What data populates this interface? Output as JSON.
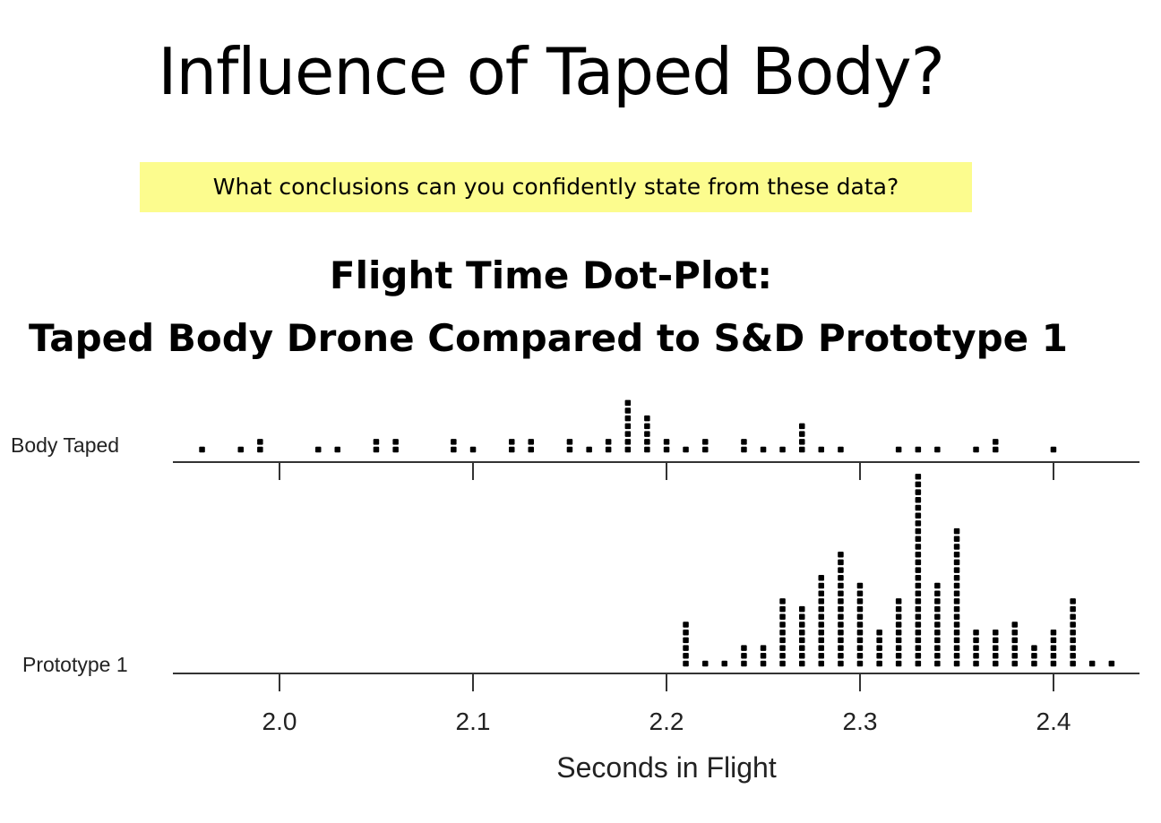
{
  "slide": {
    "title": "Influence of Taped Body?",
    "question": "What conclusions can you confidently state from these data?"
  },
  "chart_data": {
    "type": "dotplot",
    "title_line1": "Flight Time Dot-Plot:",
    "title_line2": "Taped Body Drone Compared to S&D Prototype 1",
    "xlabel": "Seconds in Flight",
    "xlim": [
      1.945,
      2.445
    ],
    "xticks": [
      2.0,
      2.1,
      2.2,
      2.3,
      2.4
    ],
    "xtick_labels": [
      "2.0",
      "2.1",
      "2.2",
      "2.3",
      "2.4"
    ],
    "series": [
      {
        "name": "Body Taped",
        "counts": [
          [
            1.96,
            1
          ],
          [
            1.98,
            1
          ],
          [
            1.99,
            2
          ],
          [
            2.02,
            1
          ],
          [
            2.03,
            1
          ],
          [
            2.05,
            2
          ],
          [
            2.06,
            2
          ],
          [
            2.09,
            2
          ],
          [
            2.1,
            1
          ],
          [
            2.12,
            2
          ],
          [
            2.13,
            2
          ],
          [
            2.15,
            2
          ],
          [
            2.16,
            1
          ],
          [
            2.17,
            2
          ],
          [
            2.18,
            7
          ],
          [
            2.19,
            5
          ],
          [
            2.2,
            2
          ],
          [
            2.21,
            1
          ],
          [
            2.22,
            2
          ],
          [
            2.24,
            2
          ],
          [
            2.25,
            1
          ],
          [
            2.26,
            1
          ],
          [
            2.27,
            4
          ],
          [
            2.28,
            1
          ],
          [
            2.29,
            1
          ],
          [
            2.32,
            1
          ],
          [
            2.33,
            1
          ],
          [
            2.34,
            1
          ],
          [
            2.36,
            1
          ],
          [
            2.37,
            2
          ],
          [
            2.4,
            1
          ]
        ]
      },
      {
        "name": "Prototype 1",
        "counts": [
          [
            2.21,
            6
          ],
          [
            2.22,
            1
          ],
          [
            2.23,
            1
          ],
          [
            2.24,
            3
          ],
          [
            2.25,
            3
          ],
          [
            2.26,
            9
          ],
          [
            2.27,
            8
          ],
          [
            2.28,
            12
          ],
          [
            2.29,
            15
          ],
          [
            2.3,
            11
          ],
          [
            2.31,
            5
          ],
          [
            2.32,
            9
          ],
          [
            2.33,
            25
          ],
          [
            2.34,
            11
          ],
          [
            2.35,
            18
          ],
          [
            2.36,
            5
          ],
          [
            2.37,
            5
          ],
          [
            2.38,
            6
          ],
          [
            2.39,
            3
          ],
          [
            2.4,
            5
          ],
          [
            2.41,
            9
          ],
          [
            2.42,
            1
          ],
          [
            2.43,
            1
          ]
        ]
      }
    ]
  }
}
